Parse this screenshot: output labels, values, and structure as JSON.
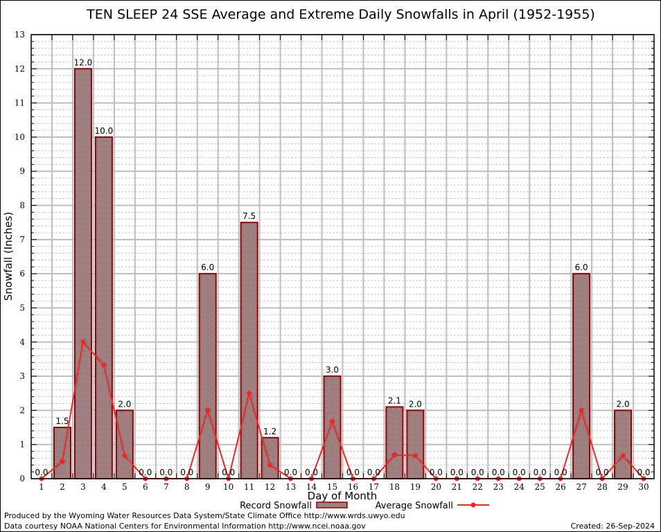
{
  "chart_data": {
    "type": "bar",
    "title": "TEN SLEEP 24 SSE Average and Extreme Daily Snowfalls in April (1952-1955)",
    "xlabel": "Day of Month",
    "ylabel": "Snowfall (Inches)",
    "ylim": [
      0,
      13
    ],
    "yticks": [
      0,
      1,
      2,
      3,
      4,
      5,
      6,
      7,
      8,
      9,
      10,
      11,
      12,
      13
    ],
    "grid": true,
    "legend_position": "bottom-center",
    "categories": [
      "1",
      "2",
      "3",
      "4",
      "5",
      "6",
      "7",
      "8",
      "9",
      "10",
      "11",
      "12",
      "13",
      "14",
      "15",
      "16",
      "17",
      "18",
      "19",
      "20",
      "21",
      "22",
      "23",
      "24",
      "25",
      "26",
      "27",
      "28",
      "29",
      "30"
    ],
    "series": [
      {
        "name": "Record Snowfall",
        "type": "bar",
        "color": "#8b0000",
        "values": [
          0.0,
          1.5,
          12.0,
          10.0,
          2.0,
          0.0,
          0.0,
          0.0,
          6.0,
          0.0,
          7.5,
          1.2,
          0.0,
          0.0,
          3.0,
          0.0,
          0.0,
          2.1,
          2.0,
          0.0,
          0.0,
          0.0,
          0.0,
          0.0,
          0.0,
          0.0,
          6.0,
          0.0,
          2.0,
          0.0
        ],
        "labels": [
          "0.0",
          "1.5",
          "12.0",
          "10.0",
          "2.0",
          "0.0",
          "0.0",
          "0.0",
          "6.0",
          "0.0",
          "7.5",
          "1.2",
          "0.0",
          "0.0",
          "3.0",
          "0.0",
          "0.0",
          "2.1",
          "2.0",
          "0.0",
          "0.0",
          "0.0",
          "0.0",
          "0.0",
          "0.0",
          "0.0",
          "6.0",
          "0.0",
          "2.0",
          "0.0"
        ]
      },
      {
        "name": "Average Snowfall",
        "type": "line",
        "color": "#ff2020",
        "values": [
          0.0,
          0.5,
          4.0,
          3.33,
          0.67,
          0.0,
          0.0,
          0.0,
          2.0,
          0.0,
          2.5,
          0.4,
          0.0,
          0.0,
          1.67,
          0.0,
          0.0,
          0.7,
          0.67,
          0.0,
          0.0,
          0.0,
          0.0,
          0.0,
          0.0,
          0.0,
          2.0,
          0.0,
          0.67,
          0.0
        ]
      }
    ]
  },
  "footer": {
    "produced_by": "Produced by the Wyoming Water Resources Data System/State Climate Office http://www.wrds.uwyo.edu",
    "data_courtesy": "Data courtesy NOAA National Centers for Environmental Information http://www.ncei.noaa.gov",
    "created": "Created:  26-Sep-2024"
  }
}
